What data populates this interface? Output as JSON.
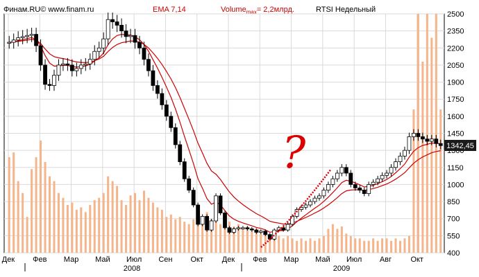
{
  "header": {
    "source": "Финам.RU© www.finam.ru",
    "ema": "EMA 7,14",
    "volume_prefix": "Volume",
    "volume_sub": "max",
    "volume_suffix": "= 2,2млрд.",
    "ticker": "RTSI Недельный"
  },
  "colors": {
    "ema_line": "#cc0000",
    "volume_bar": "#f5b48a",
    "price_box": "#1a1a1a",
    "annotation": "#dd0000",
    "plot_border": "#000000",
    "grid": "#d9d9d9"
  },
  "annotation_glyph": "?",
  "chart_data": {
    "type": "candlestick",
    "title": "RTSI Недельный",
    "y_axis": {
      "position": "right",
      "range": [
        400,
        2500
      ],
      "ticks": [
        400,
        550,
        700,
        850,
        1000,
        1150,
        1300,
        1450,
        1600,
        1750,
        1900,
        2050,
        2200,
        2350,
        2500
      ]
    },
    "x_axis": {
      "month_labels": [
        "Дек",
        "Фев",
        "Мар",
        "Май",
        "Июл",
        "Сен",
        "Окт",
        "Дек",
        "Фев",
        "Мар",
        "Май",
        "Июл",
        "Авг",
        "Окт"
      ],
      "year_labels": [
        "2008",
        "2009"
      ]
    },
    "last_price": "1342,45",
    "volume_max": "2,2млрд.",
    "ema_periods": [
      7,
      14
    ],
    "grid": true,
    "close": [
      2250,
      2270,
      2290,
      2300,
      2310,
      2320,
      2220,
      2050,
      1880,
      1870,
      1960,
      2050,
      2060,
      2050,
      2000,
      2020,
      2050,
      2060,
      2100,
      2170,
      2200,
      2280,
      2450,
      2430,
      2400,
      2350,
      2300,
      2310,
      2250,
      2200,
      2100,
      2000,
      1870,
      1800,
      1700,
      1600,
      1500,
      1350,
      1200,
      1050,
      950,
      820,
      650,
      720,
      600,
      680,
      900,
      750,
      620,
      580,
      610,
      620,
      620,
      610,
      600,
      580,
      590,
      560,
      520,
      600,
      620,
      600,
      650,
      720,
      780,
      800,
      820,
      850,
      880,
      900,
      950,
      1000,
      1050,
      1100,
      1150,
      1100,
      1000,
      970,
      950,
      920,
      1000,
      1020,
      1050,
      1080,
      1100,
      1150,
      1200,
      1250,
      1300,
      1420,
      1450,
      1420,
      1400,
      1380,
      1400,
      1360,
      1342
    ],
    "volume": [
      0.4,
      0.42,
      0.3,
      0.25,
      0.15,
      0.35,
      0.4,
      0.47,
      0.38,
      0.32,
      0.3,
      0.25,
      0.23,
      0.2,
      0.21,
      0.18,
      0.19,
      0.17,
      0.2,
      0.22,
      0.23,
      0.25,
      0.32,
      0.3,
      0.28,
      0.22,
      0.2,
      0.24,
      0.25,
      0.22,
      0.26,
      0.23,
      0.21,
      0.19,
      0.18,
      0.15,
      0.16,
      0.14,
      0.15,
      0.13,
      0.12,
      0.14,
      0.16,
      0.15,
      0.17,
      0.14,
      0.13,
      0.12,
      0.12,
      0.13,
      0.11,
      0.12,
      0.1,
      0.11,
      0.09,
      0.1,
      0.08,
      0.09,
      0.07,
      0.08,
      0.07,
      0.06,
      0.07,
      0.06,
      0.05,
      0.06,
      0.05,
      0.06,
      0.05,
      0.06,
      0.07,
      0.1,
      0.12,
      0.1,
      0.11,
      0.08,
      0.07,
      0.06,
      0.06,
      0.05,
      0.05,
      0.06,
      0.05,
      0.06,
      0.06,
      0.05,
      0.06,
      0.05,
      0.06,
      0.07,
      0.6,
      1.0,
      0.8,
      1.0,
      0.9,
      1.0,
      0.6
    ]
  }
}
